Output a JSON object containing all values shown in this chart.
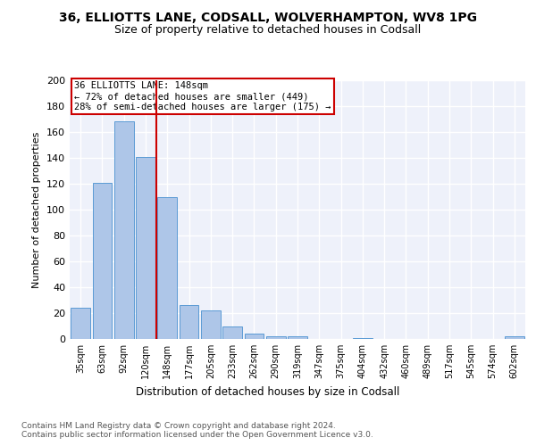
{
  "title1": "36, ELLIOTTS LANE, CODSALL, WOLVERHAMPTON, WV8 1PG",
  "title2": "Size of property relative to detached houses in Codsall",
  "xlabel": "Distribution of detached houses by size in Codsall",
  "ylabel": "Number of detached properties",
  "categories": [
    "35sqm",
    "63sqm",
    "92sqm",
    "120sqm",
    "148sqm",
    "177sqm",
    "205sqm",
    "233sqm",
    "262sqm",
    "290sqm",
    "319sqm",
    "347sqm",
    "375sqm",
    "404sqm",
    "432sqm",
    "460sqm",
    "489sqm",
    "517sqm",
    "545sqm",
    "574sqm",
    "602sqm"
  ],
  "values": [
    24,
    121,
    168,
    141,
    110,
    26,
    22,
    10,
    4,
    2,
    2,
    0,
    0,
    1,
    0,
    0,
    0,
    0,
    0,
    0,
    2
  ],
  "bar_color": "#aec6e8",
  "bar_edge_color": "#5b9bd5",
  "vline_x": 3.5,
  "vline_color": "#cc0000",
  "annotation_line1": "36 ELLIOTTS LANE: 148sqm",
  "annotation_line2": "← 72% of detached houses are smaller (449)",
  "annotation_line3": "28% of semi-detached houses are larger (175) →",
  "annotation_box_color": "#cc0000",
  "annotation_text_color": "#000000",
  "footer": "Contains HM Land Registry data © Crown copyright and database right 2024.\nContains public sector information licensed under the Open Government Licence v3.0.",
  "ylim": [
    0,
    200
  ],
  "yticks": [
    0,
    20,
    40,
    60,
    80,
    100,
    120,
    140,
    160,
    180,
    200
  ],
  "background_color": "#eef1fa",
  "grid_color": "#ffffff",
  "title_fontsize": 10,
  "subtitle_fontsize": 9
}
